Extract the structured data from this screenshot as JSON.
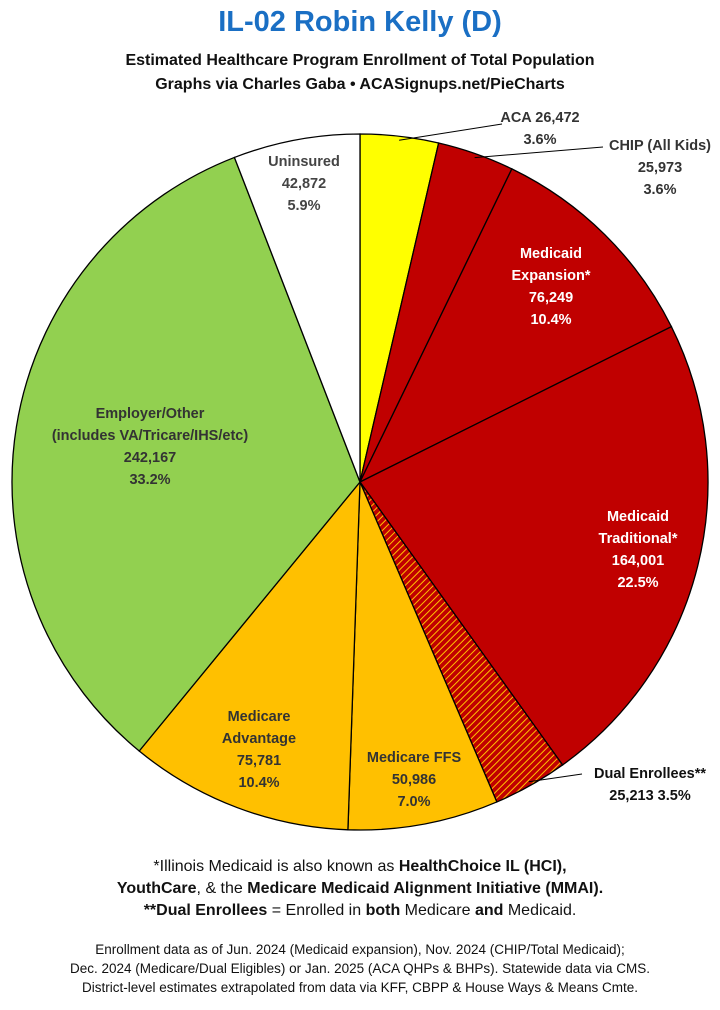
{
  "header": {
    "title": "IL-02 Robin Kelly (D)",
    "subtitle_line1": "Estimated Healthcare Program Enrollment of Total Population",
    "subtitle_line2": "Graphs via Charles Gaba  •  ACASignups.net/PieCharts"
  },
  "chart_data": {
    "type": "pie",
    "start_angle": "12 o'clock",
    "direction": "clockwise",
    "slices": [
      {
        "name": "ACA",
        "label_lines": [
          "ACA 26,472",
          "3.6%"
        ],
        "value": 26472,
        "percent": 3.6,
        "color": "#ffff00",
        "label_color": "#333333"
      },
      {
        "name": "CHIP (All Kids)",
        "label_lines": [
          "CHIP (All Kids)",
          "25,973",
          "3.6%"
        ],
        "value": 25973,
        "percent": 3.6,
        "color": "#c00000",
        "label_color": "#333333"
      },
      {
        "name": "Medicaid Expansion*",
        "label_lines": [
          "Medicaid",
          "Expansion*",
          "76,249",
          "10.4%"
        ],
        "value": 76249,
        "percent": 10.4,
        "color": "#c00000",
        "label_color": "#ffffff"
      },
      {
        "name": "Medicaid Traditional*",
        "label_lines": [
          "Medicaid",
          "Traditional*",
          "164,001",
          "22.5%"
        ],
        "value": 164001,
        "percent": 22.5,
        "color": "#c00000",
        "label_color": "#ffffff"
      },
      {
        "name": "Dual Enrollees**",
        "label_lines": [
          "Dual Enrollees**",
          "25,213 3.5%"
        ],
        "value": 25213,
        "percent": 3.5,
        "color": "#c00000",
        "pattern": "hatched",
        "label_color": "#111111"
      },
      {
        "name": "Medicare FFS",
        "label_lines": [
          "Medicare FFS",
          "50,986",
          "7.0%"
        ],
        "value": 50986,
        "percent": 7.0,
        "color": "#ffc000",
        "label_color": "#333333"
      },
      {
        "name": "Medicare Advantage",
        "label_lines": [
          "Medicare",
          "Advantage",
          "75,781",
          "10.4%"
        ],
        "value": 75781,
        "percent": 10.4,
        "color": "#ffc000",
        "label_color": "#333333"
      },
      {
        "name": "Employer/Other",
        "label_lines": [
          "Employer/Other",
          "(includes VA/Tricare/IHS/etc)",
          "242,167",
          "33.2%"
        ],
        "value": 242167,
        "percent": 33.2,
        "color": "#92d050",
        "label_color": "#333333"
      },
      {
        "name": "Uninsured",
        "label_lines": [
          "Uninsured",
          "42,872",
          "5.9%"
        ],
        "value": 42872,
        "percent": 5.9,
        "color": "#ffffff",
        "label_color": "#444444"
      }
    ]
  },
  "footnotes": {
    "line1_pre": "*Illinois Medicaid is also known as ",
    "line1_bold": "HealthChoice IL (HCI),",
    "line2_bold1": "YouthCare",
    "line2_mid": ", & the ",
    "line2_bold2": "Medicare Medicaid Alignment Initiative (MMAI).",
    "line3_bold1": "**Dual Enrollees",
    "line3_mid1": " = Enrolled in ",
    "line3_bold2": "both",
    "line3_mid2": " Medicare ",
    "line3_bold3": "and",
    "line3_end": " Medicaid."
  },
  "source": {
    "line1": "Enrollment data as of Jun. 2024 (Medicaid expansion), Nov. 2024 (CHIP/Total Medicaid);",
    "line2": "Dec. 2024 (Medicare/Dual Eligibles) or Jan. 2025 (ACA QHPs & BHPs). Statewide data via CMS.",
    "line3": "District-level estimates extrapolated from data via KFF, CBPP & House Ways & Means Cmte."
  }
}
